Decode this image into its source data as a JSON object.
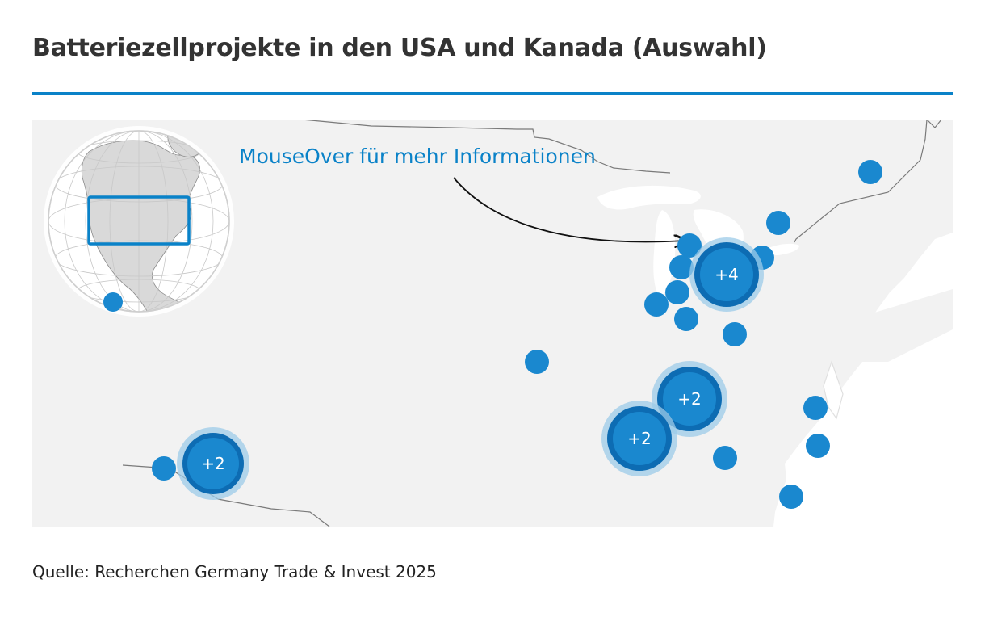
{
  "title": "Batteriezellprojekte in den USA und Kanada (Auswahl)",
  "hint": "MouseOver für mehr Informationen",
  "source": "Quelle: Recherchen Germany Trade & Invest 2025",
  "colors": {
    "accent": "#0a82c8",
    "marker": "#1a88cf",
    "marker_dark": "#0d6cb3",
    "marker_halo": "#9ccbe8",
    "land": "#f2f2f2",
    "water": "#ffffff",
    "border": "#777777"
  },
  "map": {
    "region": "USA und Kanada",
    "inset_globe": "north-america-locator",
    "clusters": [
      {
        "label": "+2",
        "name": "cluster-southwest"
      },
      {
        "label": "+4",
        "name": "cluster-great-lakes"
      },
      {
        "label": "+2",
        "name": "cluster-kentucky"
      },
      {
        "label": "+2",
        "name": "cluster-tennessee"
      }
    ],
    "single_markers": 18
  }
}
